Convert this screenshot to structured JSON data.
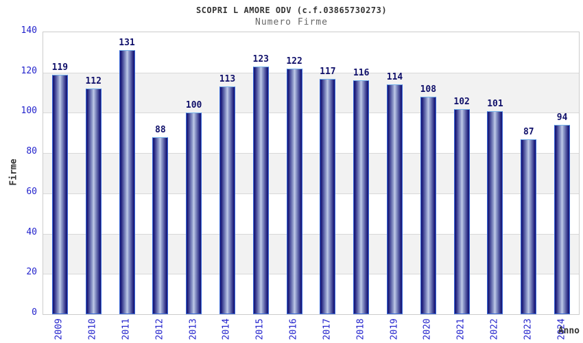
{
  "chart_data": {
    "type": "bar",
    "title": "SCOPRI L AMORE ODV (c.f.03865730273)",
    "subtitle": "Numero Firme",
    "xlabel": "Anno",
    "ylabel": "Firme",
    "categories": [
      "2009",
      "2010",
      "2011",
      "2012",
      "2013",
      "2014",
      "2015",
      "2016",
      "2017",
      "2018",
      "2019",
      "2020",
      "2021",
      "2022",
      "2023",
      "2024"
    ],
    "values": [
      119,
      112,
      131,
      88,
      100,
      113,
      123,
      122,
      117,
      116,
      114,
      108,
      102,
      101,
      87,
      94
    ],
    "ylim": [
      0,
      140
    ],
    "ytick_step": 20,
    "grid": true,
    "legend_position": "none"
  },
  "colors": {
    "title": "#333333",
    "subtitle": "#666666",
    "tick_label": "#2222cc",
    "value_label": "#10106a",
    "axis_title": "#333333",
    "plot_border": "#cccccc",
    "band_gray": "#f2f2f2",
    "band_white": "#ffffff",
    "gridline": "#d8d8d8",
    "bar_border": "#3a6ad8",
    "bar_top_border": "#74b2ea",
    "bar_edge": "#1b1b7a",
    "bar_mid": "#9aa6d2",
    "bar_highlight": "#c2cbe8"
  }
}
